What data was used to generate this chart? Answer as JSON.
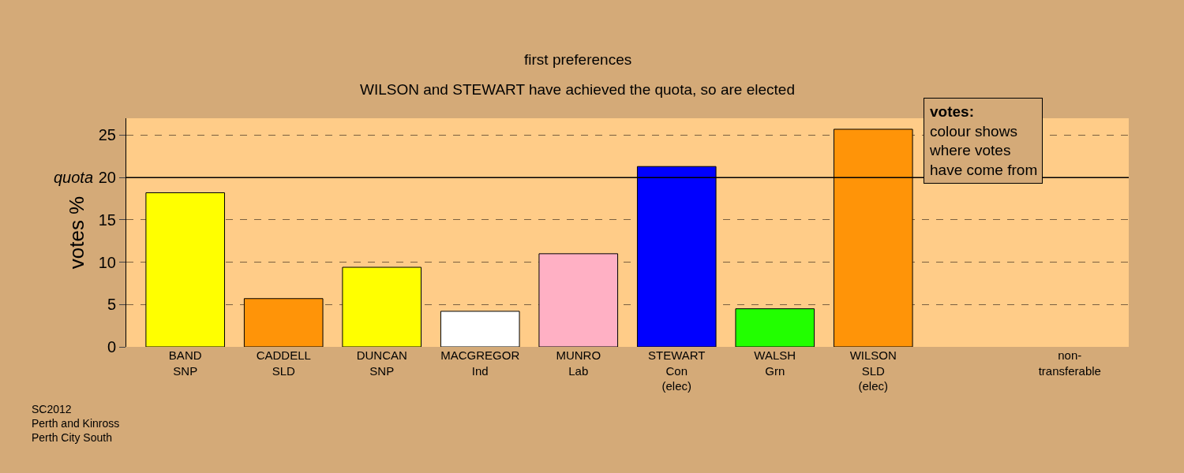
{
  "chart_data": {
    "type": "bar",
    "title": "first preferences",
    "subtitle": "WILSON and STEWART have achieved the quota, so are elected",
    "ylabel": "votes %",
    "categories": [
      "BAND\nSNP",
      "CADDELL\nSLD",
      "DUNCAN\nSNP",
      "MACGREGOR\nInd",
      "MUNRO\nLab",
      "STEWART\nCon\n(elec)",
      "WALSH\nGrn",
      "WILSON\nSLD\n(elec)",
      null,
      "non-\ntransferable"
    ],
    "values": [
      18.2,
      5.7,
      9.4,
      4.2,
      11.0,
      21.3,
      4.5,
      25.7,
      null,
      null
    ],
    "colors": [
      "#ffff00",
      "#ff9408",
      "#ffff00",
      "#ffffff",
      "#ffb0c4",
      "#0000ff",
      "#22ff00",
      "#ff9408",
      "#ffffff",
      "#ffffff"
    ],
    "ylim": [
      0,
      27
    ],
    "yticks": [
      0,
      5,
      10,
      15,
      20,
      25
    ],
    "grid": "y",
    "ref_lines": [
      {
        "axis": "y",
        "value": 20,
        "label": "quota",
        "color": "#000000",
        "line_style": "solid"
      }
    ],
    "annotations": [
      "votes:\ncolour shows\nwhere votes\nhave come from",
      "SC2012\nPerth and Kinross\nPerth City South"
    ]
  }
}
